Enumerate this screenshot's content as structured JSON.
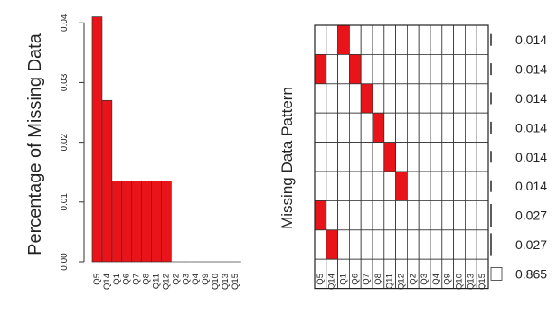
{
  "chart_data": [
    {
      "type": "bar",
      "ylabel": "Percentage of Missing Data",
      "categories": [
        "Q5",
        "Q14",
        "Q1",
        "Q6",
        "Q7",
        "Q8",
        "Q11",
        "Q12",
        "Q2",
        "Q3",
        "Q4",
        "Q9",
        "Q10",
        "Q13",
        "Q15"
      ],
      "values": [
        0.041,
        0.027,
        0.0135,
        0.0135,
        0.0135,
        0.0135,
        0.0135,
        0.0135,
        0,
        0,
        0,
        0,
        0,
        0,
        0
      ],
      "ylim": [
        0,
        0.042
      ],
      "yticks": [
        "0.00",
        "0.01",
        "0.02",
        "0.03",
        "0.04"
      ],
      "color": "#e8141a"
    },
    {
      "type": "heatmap",
      "ylabel": "Missing Data Pattern",
      "columns": [
        "Q5",
        "Q14",
        "Q1",
        "Q6",
        "Q7",
        "Q8",
        "Q11",
        "Q12",
        "Q2",
        "Q3",
        "Q4",
        "Q9",
        "Q10",
        "Q13",
        "Q15"
      ],
      "patterns": [
        {
          "missing": [
            "Q1"
          ],
          "proportion": "0.014"
        },
        {
          "missing": [
            "Q5",
            "Q6"
          ],
          "proportion": "0.014"
        },
        {
          "missing": [
            "Q7"
          ],
          "proportion": "0.014"
        },
        {
          "missing": [
            "Q8"
          ],
          "proportion": "0.014"
        },
        {
          "missing": [
            "Q11"
          ],
          "proportion": "0.014"
        },
        {
          "missing": [
            "Q12"
          ],
          "proportion": "0.014"
        },
        {
          "missing": [
            "Q5"
          ],
          "proportion": "0.027"
        },
        {
          "missing": [
            "Q14"
          ],
          "proportion": "0.027"
        },
        {
          "missing": [],
          "proportion": "0.865"
        }
      ],
      "colors": {
        "missing": "#e8141a",
        "observed": "#ffffff"
      }
    }
  ]
}
